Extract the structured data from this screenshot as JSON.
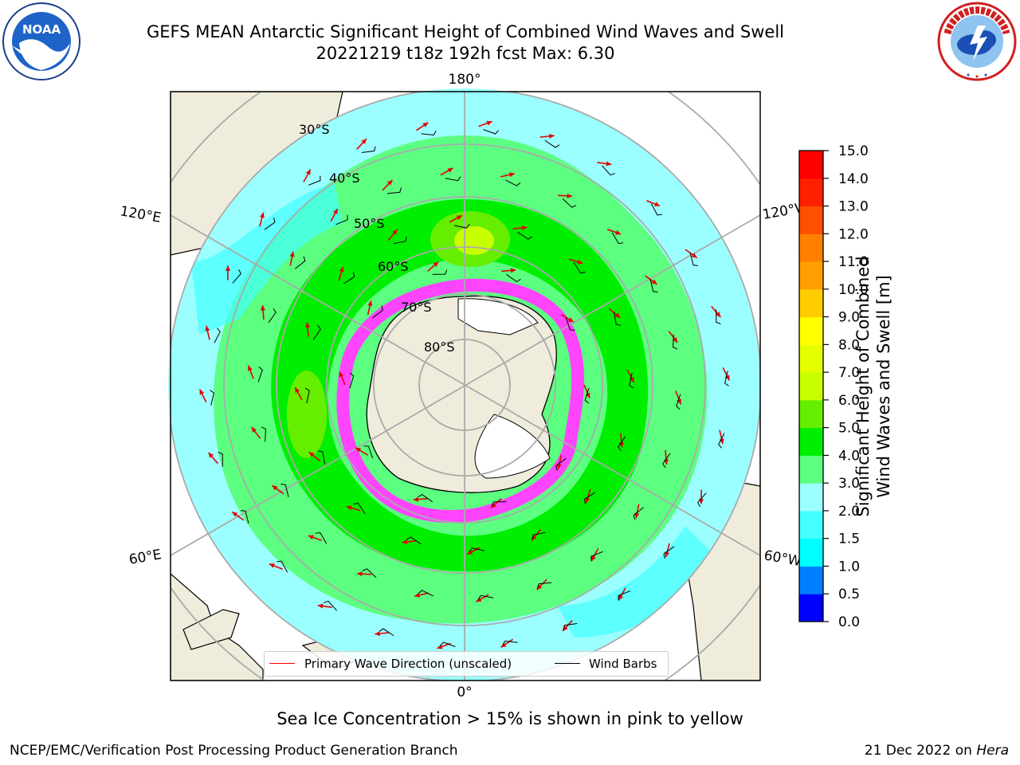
{
  "header": {
    "title_line1": "GEFS MEAN Antarctic Significant Height of Combined Wind Waves and Swell",
    "title_line2": "20221219 t18z 192h fcst   Max: 6.30"
  },
  "logos": {
    "noaa": {
      "text": "NOAA",
      "ring_text": "NATIONAL OCEANIC AND ATMOSPHERIC ADMINISTRATION · U.S. DEPARTMENT OF COMMERCE"
    },
    "nws": {
      "ring_text": "NATIONAL WEATHER SERVICE"
    }
  },
  "map": {
    "longitude_labels": {
      "top": "180°",
      "bottom": "0°",
      "upper_left": "120°E",
      "upper_right": "120°W",
      "lower_left": "60°E",
      "lower_right": "60°W"
    },
    "latitude_labels": [
      "30°S",
      "40°S",
      "50°S",
      "60°S",
      "70°S",
      "80°S"
    ],
    "legend": {
      "wave_label": "Primary Wave Direction (unscaled)",
      "barb_label": "Wind Barbs"
    }
  },
  "colorbar": {
    "label_line1": "Significant Height of Combined",
    "label_line2": "Wind Waves and Swell [m]",
    "ticks": [
      "0.0",
      "0.5",
      "1.0",
      "1.5",
      "2.0",
      "3.0",
      "4.0",
      "5.0",
      "6.0",
      "7.0",
      "8.0",
      "9.0",
      "10.0",
      "11.0",
      "12.0",
      "13.0",
      "14.0",
      "15.0"
    ],
    "colors": [
      "#0000ff",
      "#0080ff",
      "#00ffff",
      "#44ffff",
      "#9cffff",
      "#5cff80",
      "#00ee00",
      "#66ee00",
      "#c8ff00",
      "#e6ff00",
      "#ffff00",
      "#ffcc00",
      "#ffa000",
      "#ff8000",
      "#ff5000",
      "#ff2000",
      "#ff0000"
    ]
  },
  "footer": {
    "sea_ice_note": "Sea Ice Concentration > 15% is shown in pink to yellow",
    "branch": "NCEP/EMC/Verification Post Processing Product Generation Branch",
    "date": "21 Dec 2022 on",
    "host": "Hera"
  }
}
